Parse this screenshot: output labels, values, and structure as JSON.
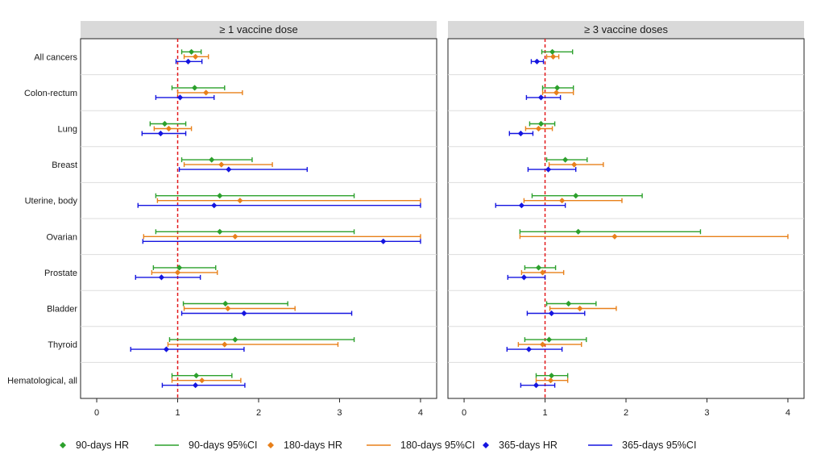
{
  "chart_data": {
    "type": "forest",
    "categories": [
      "All cancers",
      "Colon-rectum",
      "Lung",
      "Breast",
      "Uterine, body",
      "Ovarian",
      "Prostate",
      "Bladder",
      "Thyroid",
      "Hematological, all"
    ],
    "x_ticks": [
      0,
      1,
      2,
      3,
      4
    ],
    "xlim": [
      -0.1,
      4.1
    ],
    "reference_line": 1,
    "reference_color": "#e31a1c",
    "grid": "horizontal separators between categories",
    "legend_position": "bottom",
    "series_meta": [
      {
        "key": "d90",
        "hr_label": "90-days HR",
        "ci_label": "90-days 95%CI",
        "color": "#2ca02c"
      },
      {
        "key": "d180",
        "hr_label": "180-days HR",
        "ci_label": "180-days 95%CI",
        "color": "#e8801a"
      },
      {
        "key": "d365",
        "hr_label": "365-days HR",
        "ci_label": "365-days 95%CI",
        "color": "#1515e0"
      }
    ],
    "panels": [
      {
        "title": "≥ 1 vaccine dose",
        "series": [
          {
            "key": "d90",
            "hr": [
              1.17,
              1.21,
              0.84,
              1.42,
              1.52,
              1.52,
              1.02,
              1.59,
              1.71,
              1.23
            ],
            "lo": [
              1.05,
              0.93,
              0.66,
              1.05,
              0.73,
              0.73,
              0.7,
              1.07,
              0.9,
              0.93
            ],
            "hi": [
              1.29,
              1.58,
              1.1,
              1.92,
              3.18,
              3.18,
              1.47,
              2.36,
              3.18,
              1.67
            ]
          },
          {
            "key": "d180",
            "hr": [
              1.22,
              1.35,
              0.89,
              1.54,
              1.77,
              1.71,
              1.0,
              1.62,
              1.58,
              1.3
            ],
            "lo": [
              1.08,
              1.0,
              0.71,
              1.08,
              0.75,
              0.58,
              0.68,
              1.08,
              0.88,
              0.93
            ],
            "hi": [
              1.38,
              1.8,
              1.17,
              2.17,
              4.0,
              4.0,
              1.49,
              2.45,
              2.98,
              1.78
            ]
          },
          {
            "key": "d365",
            "hr": [
              1.13,
              1.03,
              0.79,
              1.63,
              1.45,
              3.54,
              0.8,
              1.82,
              0.86,
              1.22
            ],
            "lo": [
              0.98,
              0.73,
              0.56,
              1.02,
              0.51,
              0.57,
              0.48,
              1.05,
              0.42,
              0.81
            ],
            "hi": [
              1.3,
              1.45,
              1.1,
              2.6,
              4.0,
              4.0,
              1.28,
              3.15,
              1.82,
              1.83
            ]
          }
        ]
      },
      {
        "title": "≥ 3 vaccine doses",
        "series": [
          {
            "key": "d90",
            "hr": [
              1.09,
              1.15,
              0.95,
              1.25,
              1.38,
              1.41,
              0.92,
              1.29,
              1.05,
              1.08
            ],
            "lo": [
              0.96,
              0.97,
              0.81,
              1.02,
              0.84,
              0.69,
              0.75,
              1.02,
              0.75,
              0.89
            ],
            "hi": [
              1.34,
              1.35,
              1.12,
              1.52,
              2.2,
              2.92,
              1.13,
              1.63,
              1.51,
              1.28
            ]
          },
          {
            "key": "d180",
            "hr": [
              1.1,
              1.14,
              0.92,
              1.36,
              1.21,
              1.86,
              0.97,
              1.43,
              0.97,
              1.07
            ],
            "lo": [
              1.02,
              0.97,
              0.76,
              1.05,
              0.74,
              0.69,
              0.71,
              1.06,
              0.67,
              0.89
            ],
            "hi": [
              1.17,
              1.35,
              1.09,
              1.72,
              1.95,
              4.0,
              1.23,
              1.88,
              1.45,
              1.28
            ]
          },
          {
            "key": "d365",
            "hr": [
              0.9,
              0.95,
              0.7,
              1.04,
              0.71,
              null,
              0.74,
              1.08,
              0.8,
              0.89
            ],
            "lo": [
              0.83,
              0.77,
              0.56,
              0.79,
              0.39,
              null,
              0.54,
              0.78,
              0.53,
              0.7
            ],
            "hi": [
              0.98,
              1.19,
              0.85,
              1.38,
              1.25,
              null,
              1.0,
              1.49,
              1.21,
              1.12
            ]
          }
        ]
      }
    ]
  }
}
